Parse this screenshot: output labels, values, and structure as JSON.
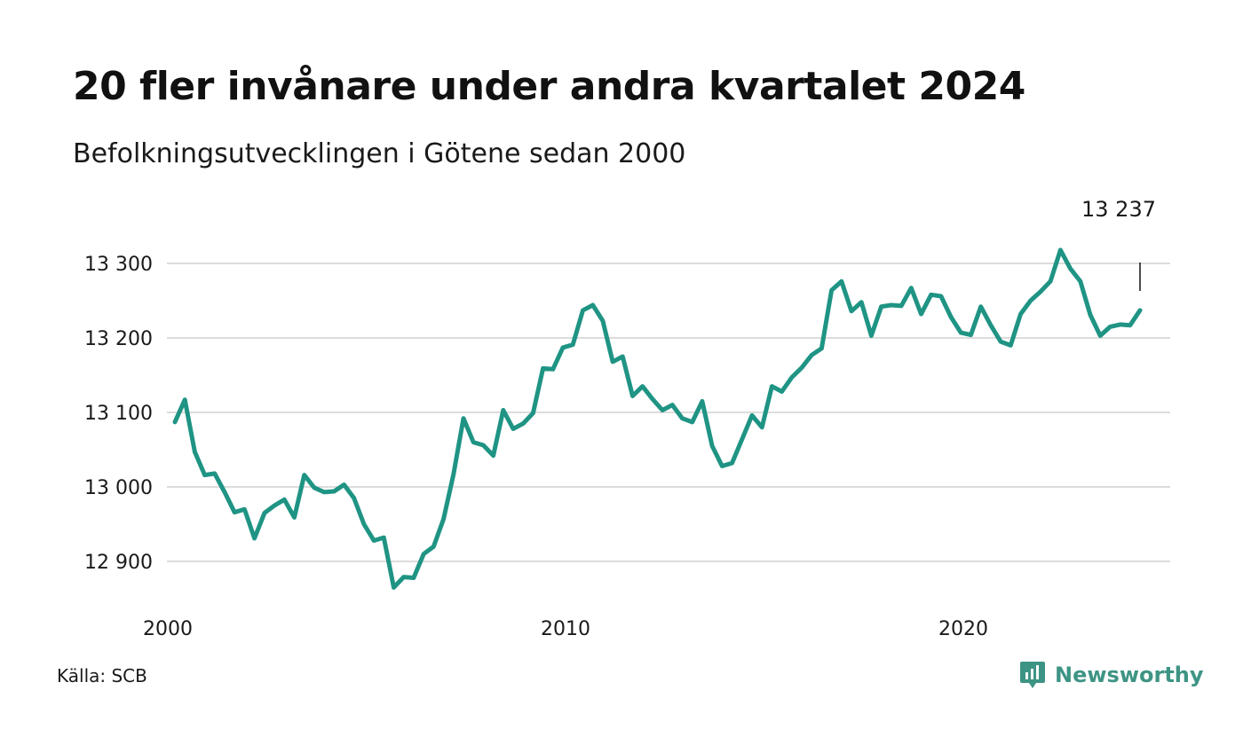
{
  "header": {
    "title": "20 fler invånare under andra kvartalet 2024",
    "subtitle": "Befolkningsutvecklingen i Götene sedan 2000"
  },
  "footer": {
    "source": "Källa: SCB",
    "brand": "Newsworthy"
  },
  "colors": {
    "line": "#1f9484",
    "grid": "#dcdcdc",
    "brand": "#3e9484"
  },
  "chart_data": {
    "type": "line",
    "title": "20 fler invånare under andra kvartalet 2024",
    "subtitle": "Befolkningsutvecklingen i Götene sedan 2000",
    "xlabel": "",
    "ylabel": "",
    "x_ticks": [
      2000,
      2010,
      2020
    ],
    "x_tick_labels": [
      "2000",
      "2010",
      "2020"
    ],
    "y_ticks": [
      12900,
      13000,
      13100,
      13200,
      13300
    ],
    "y_tick_labels": [
      "12 900",
      "13 000",
      "13 100",
      "13 200",
      "13 300"
    ],
    "xlim": [
      2000,
      2024.6
    ],
    "ylim": [
      12850,
      13340
    ],
    "grid": true,
    "last_value_label": "13 237",
    "series": [
      {
        "values": [
          13087,
          13117,
          13047,
          13016,
          13018,
          12993,
          12966,
          12970,
          12931,
          12965,
          12975,
          12983,
          12959,
          13016,
          12999,
          12993,
          12994,
          13003,
          12985,
          12950,
          12928,
          12932,
          12865,
          12879,
          12878,
          12910,
          12920,
          12957,
          13017,
          13092,
          13060,
          13056,
          13042,
          13103,
          13078,
          13085,
          13099,
          13159,
          13158,
          13187,
          13191,
          13237,
          13244,
          13223,
          13168,
          13175,
          13122,
          13135,
          13118,
          13103,
          13110,
          13092,
          13087,
          13115,
          13055,
          13028,
          13032,
          13064,
          13096,
          13080,
          13135,
          13128,
          13147,
          13160,
          13177,
          13186,
          13264,
          13276,
          13236,
          13248,
          13203,
          13242,
          13244,
          13243,
          13267,
          13232,
          13258,
          13256,
          13228,
          13207,
          13204,
          13242,
          13217,
          13195,
          13190,
          13232,
          13250,
          13262,
          13276,
          13318,
          13293,
          13276,
          13231,
          13203,
          13215,
          13218,
          13217,
          13237
        ]
      }
    ]
  }
}
